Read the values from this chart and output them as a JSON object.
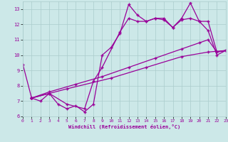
{
  "xlabel": "Windchill (Refroidissement éolien,°C)",
  "background_color": "#cce8e8",
  "grid_color": "#aacccc",
  "line_color": "#990099",
  "line1_x": [
    0,
    1
  ],
  "line1_y": [
    9.4,
    7.2
  ],
  "line2_x": [
    1,
    2,
    3,
    4,
    5,
    6,
    7,
    8,
    9,
    10,
    11,
    12,
    13,
    14,
    15,
    16,
    17,
    18,
    19,
    20,
    21,
    22,
    23
  ],
  "line2_y": [
    7.2,
    7.0,
    7.5,
    6.8,
    6.5,
    6.7,
    6.3,
    6.8,
    10.0,
    10.5,
    11.4,
    13.3,
    12.6,
    12.2,
    12.4,
    12.4,
    11.8,
    12.4,
    13.4,
    12.2,
    11.6,
    10.0,
    10.3
  ],
  "line3_x": [
    1,
    3,
    5,
    7,
    8,
    9,
    11,
    12,
    13,
    14,
    15,
    16,
    17,
    18,
    19,
    20,
    21,
    22,
    23
  ],
  "line3_y": [
    7.2,
    7.5,
    6.8,
    6.5,
    8.3,
    9.2,
    11.5,
    12.4,
    12.2,
    12.2,
    12.4,
    12.3,
    11.8,
    12.3,
    12.4,
    12.2,
    12.2,
    10.2,
    10.3
  ],
  "line4_x": [
    1,
    3,
    6,
    9,
    12,
    15,
    18,
    20,
    21,
    22,
    23
  ],
  "line4_y": [
    7.2,
    7.6,
    8.1,
    8.6,
    9.2,
    9.8,
    10.4,
    10.8,
    11.0,
    10.2,
    10.3
  ],
  "line5_x": [
    1,
    5,
    10,
    14,
    18,
    21,
    23
  ],
  "line5_y": [
    7.2,
    7.8,
    8.5,
    9.2,
    9.9,
    10.2,
    10.3
  ],
  "ylim": [
    6,
    13.5
  ],
  "xlim": [
    0,
    23
  ],
  "yticks": [
    6,
    7,
    8,
    9,
    10,
    11,
    12,
    13
  ],
  "xticks": [
    0,
    1,
    2,
    3,
    4,
    5,
    6,
    7,
    8,
    9,
    10,
    11,
    12,
    13,
    14,
    15,
    16,
    17,
    18,
    19,
    20,
    21,
    22,
    23
  ]
}
